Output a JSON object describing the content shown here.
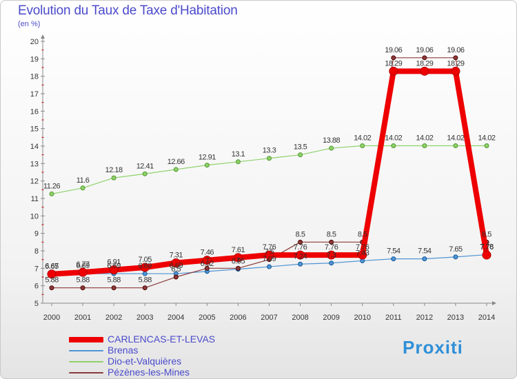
{
  "header": {
    "title": "Evolution du Taux de Taxe d'Habitation",
    "subtitle": "(en %)"
  },
  "branding": {
    "logo_text": "Proxiti"
  },
  "chart_data": {
    "type": "line",
    "title": "Evolution du Taux de Taxe d'Habitation",
    "subtitle": "(en %)",
    "xlabel": "",
    "ylabel": "",
    "ylim": [
      5,
      20
    ],
    "yticks": [
      5,
      6,
      7,
      8,
      9,
      10,
      11,
      12,
      13,
      14,
      15,
      16,
      17,
      18,
      19,
      20
    ],
    "grid": false,
    "legend_position": "bottom-left",
    "x": [
      "2000",
      "2001",
      "2002",
      "2003",
      "2004",
      "2005",
      "2006",
      "2007",
      "2008",
      "2009",
      "2010",
      "2011",
      "2012",
      "2013",
      "2014"
    ],
    "series": [
      {
        "name": "CARLENCAS-ET-LEVAS",
        "color": "#ee0000",
        "values": [
          6.67,
          6.77,
          6.91,
          7.05,
          7.31,
          7.46,
          7.61,
          7.76,
          7.76,
          7.76,
          7.76,
          18.29,
          18.29,
          18.29,
          7.76
        ],
        "labels": [
          "6.67",
          "6.77",
          "6.91",
          "7.05",
          "7.31",
          "7.46",
          "7.61",
          "7.76",
          "7.76",
          "7.76",
          "7.76",
          "18.29",
          "18.29",
          "18.29",
          "7.76"
        ]
      },
      {
        "name": "Brenas",
        "color": "#4f94d4",
        "values": [
          6.65,
          6.69,
          6.69,
          6.69,
          6.69,
          6.82,
          6.95,
          7.09,
          7.24,
          7.3,
          7.43,
          7.54,
          7.54,
          7.65,
          7.78
        ],
        "labels": [
          "6.65",
          "6.69",
          "6.69",
          "6.69",
          "6.69",
          "6.82",
          "6.95",
          "7.09",
          "7.24",
          "7.3",
          "7.43",
          "7.54",
          "7.54",
          "7.65",
          "7.78"
        ]
      },
      {
        "name": "Dio-et-Valquières",
        "color": "#8ed26a",
        "values": [
          11.26,
          11.6,
          12.18,
          12.41,
          12.66,
          12.91,
          13.1,
          13.3,
          13.5,
          13.88,
          14.02,
          14.02,
          14.02,
          14.02,
          14.02
        ],
        "labels": [
          "11.26",
          "11.6",
          "12.18",
          "12.41",
          "12.66",
          "12.91",
          "13.1",
          "13.3",
          "13.5",
          "13.88",
          "14.02",
          "14.02",
          "14.02",
          "14.02",
          "14.02"
        ]
      },
      {
        "name": "Pézènes-les-Mines",
        "color": "#8b3a3a",
        "values": [
          5.88,
          5.88,
          5.88,
          5.88,
          6.5,
          7.0,
          7.0,
          7.5,
          8.5,
          8.5,
          8.5,
          19.06,
          19.06,
          19.06,
          8.5
        ],
        "labels": [
          "5.88",
          "5.88",
          "5.88",
          "5.88",
          "6.5",
          "7",
          "7",
          "7.5",
          "8.5",
          "8.5",
          "8.5",
          "19.06",
          "19.06",
          "19.06",
          "8.5"
        ]
      }
    ]
  }
}
